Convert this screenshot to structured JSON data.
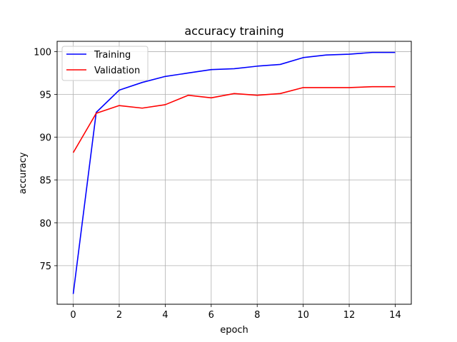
{
  "chart_data": {
    "type": "line",
    "title": "accuracy training",
    "xlabel": "epoch",
    "ylabel": "accuracy",
    "x": [
      0,
      1,
      2,
      3,
      4,
      5,
      6,
      7,
      8,
      9,
      10,
      11,
      12,
      13,
      14
    ],
    "xlim": [
      -0.7,
      14.7
    ],
    "ylim": [
      70.5,
      101.2
    ],
    "xticks": [
      0,
      2,
      4,
      6,
      8,
      10,
      12,
      14
    ],
    "yticks": [
      75,
      80,
      85,
      90,
      95,
      100
    ],
    "grid": true,
    "legend_position": "top-left",
    "series": [
      {
        "name": "Training",
        "color": "#0000ff",
        "values": [
          71.7,
          92.9,
          95.5,
          96.4,
          97.1,
          97.5,
          97.9,
          98.0,
          98.3,
          98.5,
          99.3,
          99.6,
          99.7,
          99.9,
          99.9
        ]
      },
      {
        "name": "Validation",
        "color": "#ff0000",
        "values": [
          88.2,
          92.8,
          93.7,
          93.4,
          93.8,
          94.9,
          94.6,
          95.1,
          94.9,
          95.1,
          95.8,
          95.8,
          95.8,
          95.9,
          95.9
        ]
      }
    ]
  }
}
